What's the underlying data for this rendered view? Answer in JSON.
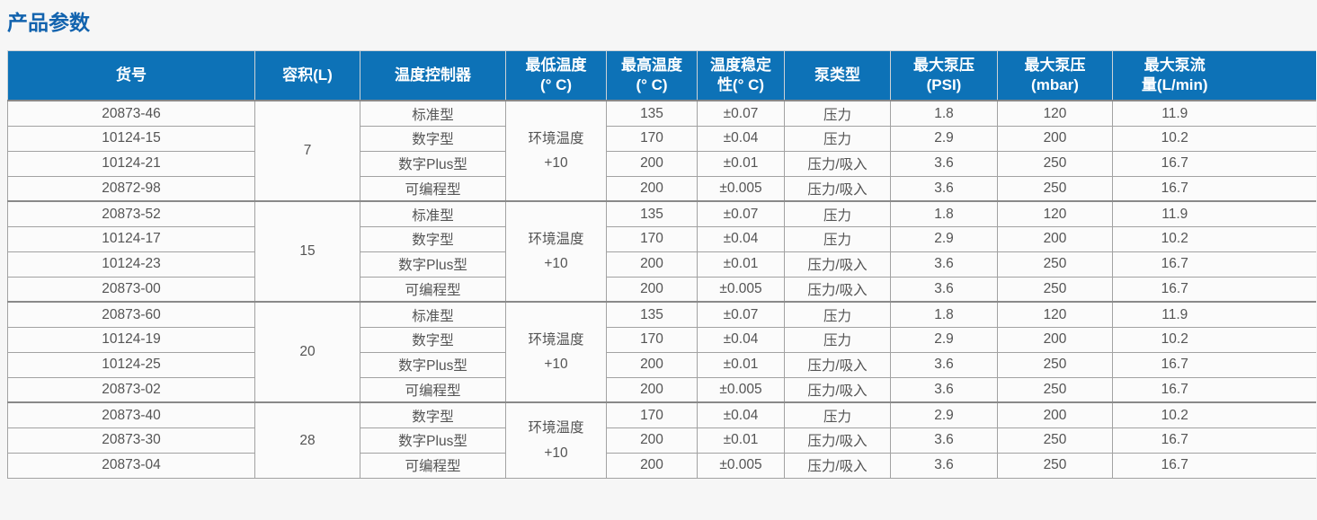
{
  "page": {
    "title": "产品参数"
  },
  "colors": {
    "title_text": "#1263ae",
    "header_bg": "#0d72b7",
    "header_text": "#ffffff",
    "body_text": "#545454",
    "border": "#a2a2a2",
    "page_bg": "#f6f6f6",
    "cell_bg": "#fbfbfb"
  },
  "table": {
    "columns": [
      {
        "key": "item",
        "label": "货号"
      },
      {
        "key": "volume",
        "label": "容积(L)"
      },
      {
        "key": "controller",
        "label": "温度控制器"
      },
      {
        "key": "min_temp",
        "label": "最低温度\n(° C)"
      },
      {
        "key": "max_temp",
        "label": "最高温度\n(° C)"
      },
      {
        "key": "stability",
        "label": "温度稳定\n性(° C)"
      },
      {
        "key": "pump_type",
        "label": "泵类型"
      },
      {
        "key": "psi",
        "label": "最大泵压\n(PSI)"
      },
      {
        "key": "mbar",
        "label": "最大泵压\n(mbar)"
      },
      {
        "key": "flow",
        "label": "最大泵流\n量(L/min)"
      }
    ],
    "groups": [
      {
        "volume": "7",
        "min_temp": "环境温度\n+10",
        "rows": [
          {
            "item": "20873-46",
            "controller": "标准型",
            "max_temp": "135",
            "stability": "±0.07",
            "pump_type": "压力",
            "psi": "1.8",
            "mbar": "120",
            "flow": "11.9"
          },
          {
            "item": "10124-15",
            "controller": "数字型",
            "max_temp": "170",
            "stability": "±0.04",
            "pump_type": "压力",
            "psi": "2.9",
            "mbar": "200",
            "flow": "10.2"
          },
          {
            "item": "10124-21",
            "controller": "数字Plus型",
            "max_temp": "200",
            "stability": "±0.01",
            "pump_type": "压力/吸入",
            "psi": "3.6",
            "mbar": "250",
            "flow": "16.7"
          },
          {
            "item": "20872-98",
            "controller": "可编程型",
            "max_temp": "200",
            "stability": "±0.005",
            "pump_type": "压力/吸入",
            "psi": "3.6",
            "mbar": "250",
            "flow": "16.7"
          }
        ]
      },
      {
        "volume": "15",
        "min_temp": "环境温度\n+10",
        "rows": [
          {
            "item": "20873-52",
            "controller": "标准型",
            "max_temp": "135",
            "stability": "±0.07",
            "pump_type": "压力",
            "psi": "1.8",
            "mbar": "120",
            "flow": "11.9"
          },
          {
            "item": "10124-17",
            "controller": "数字型",
            "max_temp": "170",
            "stability": "±0.04",
            "pump_type": "压力",
            "psi": "2.9",
            "mbar": "200",
            "flow": "10.2"
          },
          {
            "item": "10124-23",
            "controller": "数字Plus型",
            "max_temp": "200",
            "stability": "±0.01",
            "pump_type": "压力/吸入",
            "psi": "3.6",
            "mbar": "250",
            "flow": "16.7"
          },
          {
            "item": "20873-00",
            "controller": "可编程型",
            "max_temp": "200",
            "stability": "±0.005",
            "pump_type": "压力/吸入",
            "psi": "3.6",
            "mbar": "250",
            "flow": "16.7"
          }
        ]
      },
      {
        "volume": "20",
        "min_temp": "环境温度\n+10",
        "rows": [
          {
            "item": "20873-60",
            "controller": "标准型",
            "max_temp": "135",
            "stability": "±0.07",
            "pump_type": "压力",
            "psi": "1.8",
            "mbar": "120",
            "flow": "11.9"
          },
          {
            "item": "10124-19",
            "controller": "数字型",
            "max_temp": "170",
            "stability": "±0.04",
            "pump_type": "压力",
            "psi": "2.9",
            "mbar": "200",
            "flow": "10.2"
          },
          {
            "item": "10124-25",
            "controller": "数字Plus型",
            "max_temp": "200",
            "stability": "±0.01",
            "pump_type": "压力/吸入",
            "psi": "3.6",
            "mbar": "250",
            "flow": "16.7"
          },
          {
            "item": "20873-02",
            "controller": "可编程型",
            "max_temp": "200",
            "stability": "±0.005",
            "pump_type": "压力/吸入",
            "psi": "3.6",
            "mbar": "250",
            "flow": "16.7"
          }
        ]
      },
      {
        "volume": "28",
        "min_temp": "环境温度\n+10",
        "rows": [
          {
            "item": "20873-40",
            "controller": "数字型",
            "max_temp": "170",
            "stability": "±0.04",
            "pump_type": "压力",
            "psi": "2.9",
            "mbar": "200",
            "flow": "10.2"
          },
          {
            "item": "20873-30",
            "controller": "数字Plus型",
            "max_temp": "200",
            "stability": "±0.01",
            "pump_type": "压力/吸入",
            "psi": "3.6",
            "mbar": "250",
            "flow": "16.7"
          },
          {
            "item": "20873-04",
            "controller": "可编程型",
            "max_temp": "200",
            "stability": "±0.005",
            "pump_type": "压力/吸入",
            "psi": "3.6",
            "mbar": "250",
            "flow": "16.7"
          }
        ]
      }
    ]
  }
}
